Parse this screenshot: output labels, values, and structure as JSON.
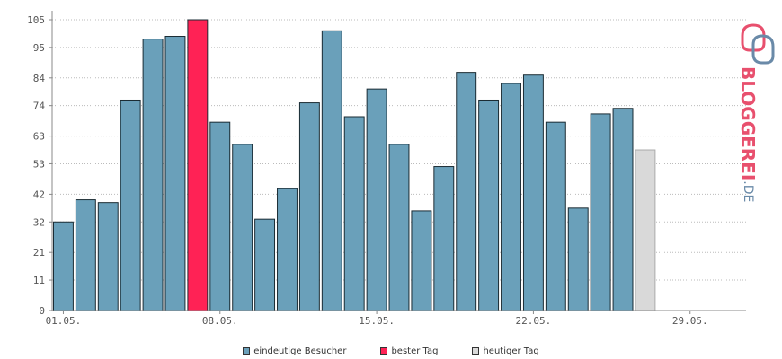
{
  "chart_data": {
    "type": "bar",
    "x": [
      "01.05.",
      "02.05.",
      "03.05.",
      "04.05.",
      "05.05.",
      "06.05.",
      "07.05.",
      "08.05.",
      "09.05.",
      "10.05.",
      "11.05.",
      "12.05.",
      "13.05.",
      "14.05.",
      "15.05.",
      "16.05.",
      "17.05.",
      "18.05.",
      "19.05.",
      "20.05.",
      "21.05.",
      "22.05.",
      "23.05.",
      "24.05.",
      "25.05.",
      "26.05.",
      "27.05."
    ],
    "values": [
      32,
      40,
      39,
      76,
      98,
      99,
      105,
      68,
      60,
      33,
      44,
      75,
      101,
      70,
      80,
      60,
      36,
      52,
      86,
      76,
      82,
      85,
      68,
      37,
      71,
      73,
      58
    ],
    "best_day_index": 6,
    "today_index": 26,
    "x_tick_labels": [
      "01.05.",
      "08.05.",
      "15.05.",
      "22.05.",
      "29.05."
    ],
    "x_tick_positions": [
      0,
      7,
      14,
      21,
      28
    ],
    "y_ticks": [
      0,
      11,
      21,
      32,
      42,
      53,
      63,
      74,
      84,
      95,
      105
    ],
    "ylim": [
      0,
      105
    ],
    "xlim": [
      -0.5,
      30.5
    ],
    "grid": true,
    "legend_position": "bottom",
    "colors": {
      "visitors": "#6aa0ba",
      "best": "#ff2255",
      "today": "#d9d9d9",
      "bar_outline": "#1a2b33",
      "grid": "#bbbbbb",
      "axis": "#888888"
    },
    "series": [
      {
        "name": "eindeutige Besucher",
        "color": "#6aa0ba"
      },
      {
        "name": "bester Tag",
        "color": "#ff2255"
      },
      {
        "name": "heutiger Tag",
        "color": "#d9d9d9"
      }
    ]
  },
  "logo": {
    "brand": "BLOGGEREI",
    "suffix": ".DE"
  }
}
